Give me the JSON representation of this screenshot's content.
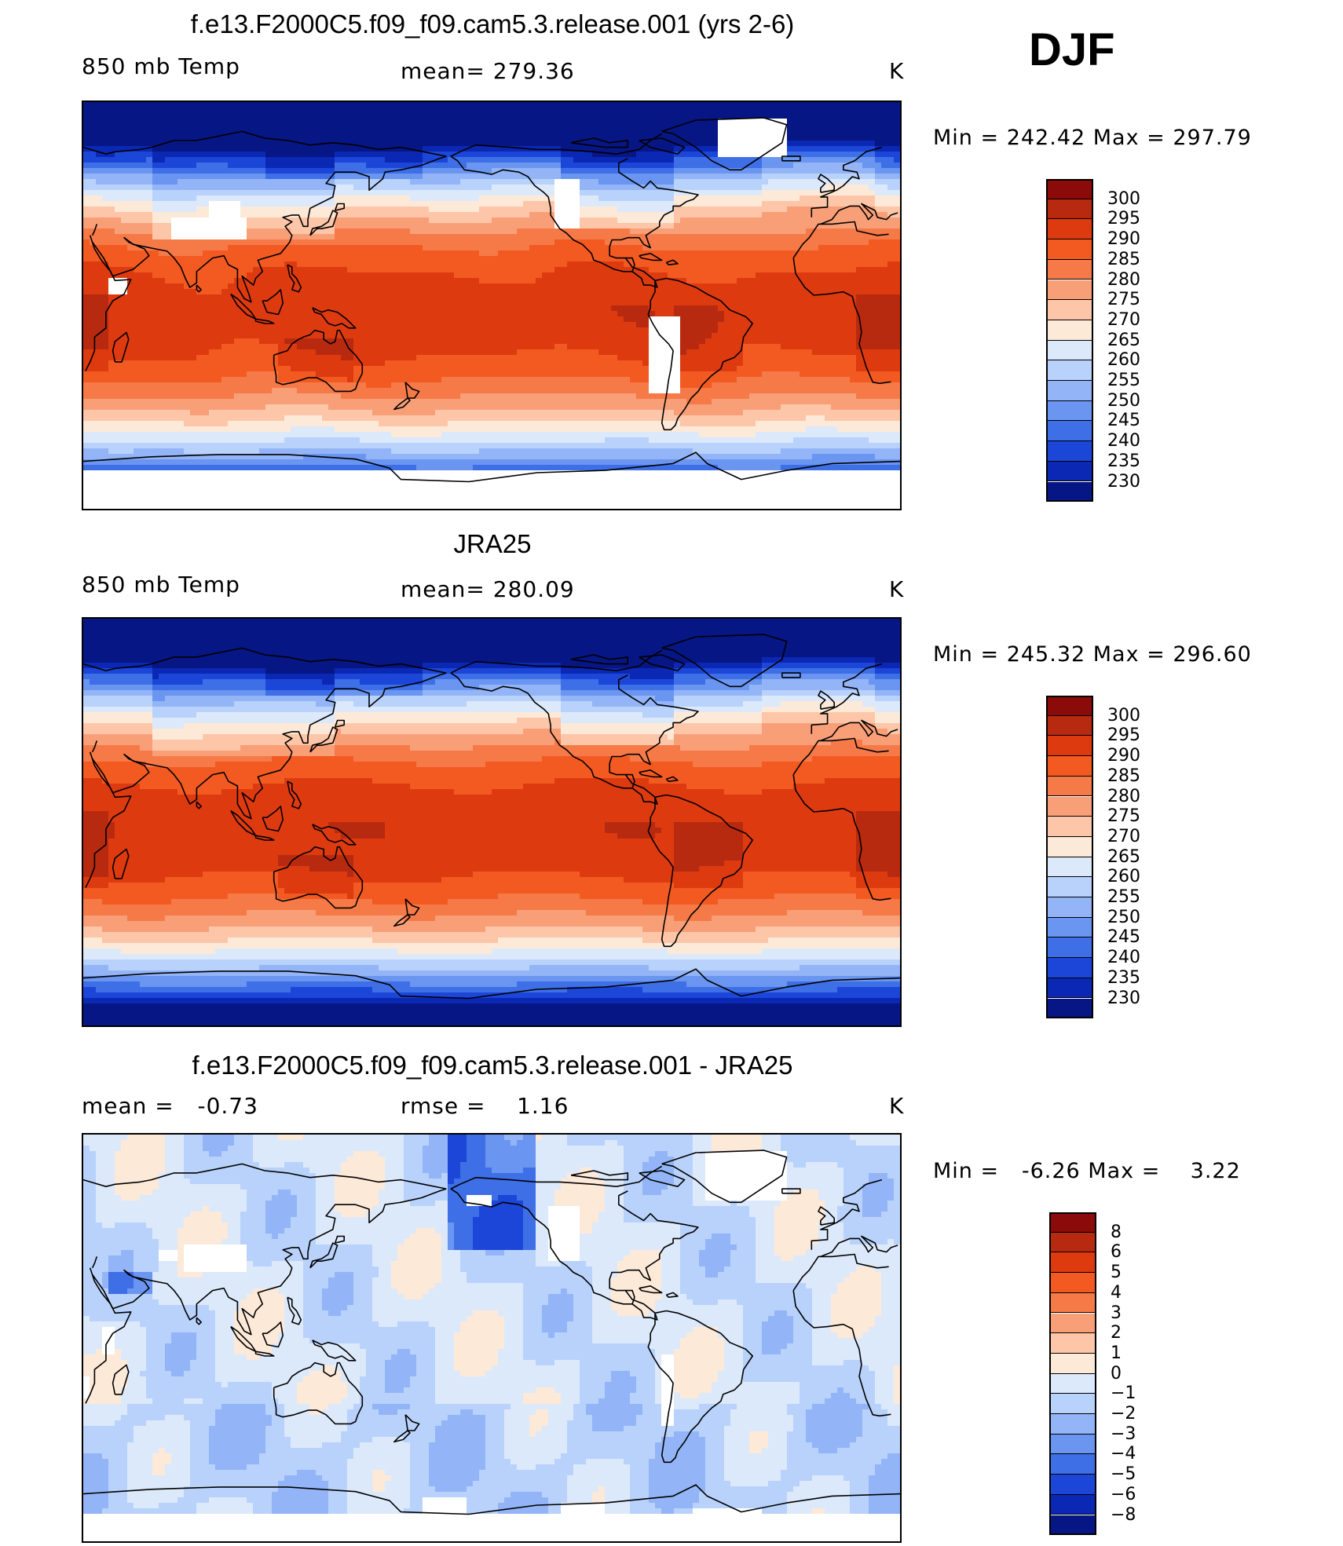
{
  "season": "DJF",
  "panels": [
    {
      "title": "f.e13.F2000C5.f09_f09.cam5.3.release.001 (yrs 2-6)",
      "left_label": "850 mb Temp",
      "center_label": "mean= 279.36",
      "units": "K",
      "min_max": "Min = 242.42 Max = 297.79",
      "colorbar_ticks": [
        "300",
        "295",
        "290",
        "285",
        "280",
        "275",
        "270",
        "265",
        "260",
        "255",
        "250",
        "245",
        "240",
        "235",
        "230"
      ],
      "colors": [
        "#8b0a0a",
        "#b82a0f",
        "#dd3a10",
        "#f25a22",
        "#f57a48",
        "#f99f78",
        "#fdc6a8",
        "#fde9d8",
        "#dce9fb",
        "#b9d2fb",
        "#93b5f7",
        "#6a95f0",
        "#3e6fe6",
        "#1c46d8",
        "#0b28b4",
        "#061685"
      ],
      "field": "model"
    },
    {
      "title": "JRA25",
      "left_label": "850 mb Temp",
      "center_label": "mean= 280.09",
      "units": "K",
      "min_max": "Min = 245.32 Max = 296.60",
      "colorbar_ticks": [
        "300",
        "295",
        "290",
        "285",
        "280",
        "275",
        "270",
        "265",
        "260",
        "255",
        "250",
        "245",
        "240",
        "235",
        "230"
      ],
      "colors": [
        "#8b0a0a",
        "#b82a0f",
        "#dd3a10",
        "#f25a22",
        "#f57a48",
        "#f99f78",
        "#fdc6a8",
        "#fde9d8",
        "#dce9fb",
        "#b9d2fb",
        "#93b5f7",
        "#6a95f0",
        "#3e6fe6",
        "#1c46d8",
        "#0b28b4",
        "#061685"
      ],
      "field": "obs"
    },
    {
      "title": "f.e13.F2000C5.f09_f09.cam5.3.release.001 - JRA25",
      "left_label": "mean =   -0.73",
      "center_label": "rmse =    1.16",
      "units": "K",
      "min_max": "Min =   -6.26 Max =    3.22",
      "colorbar_ticks": [
        "8",
        "6",
        "5",
        "4",
        "3",
        "2",
        "1",
        "0",
        "−1",
        "−2",
        "−3",
        "−4",
        "−5",
        "−6",
        "−8"
      ],
      "colors": [
        "#8b0a0a",
        "#b82a0f",
        "#dd3a10",
        "#f25a22",
        "#f57a48",
        "#f99f78",
        "#fdc6a8",
        "#fde9d8",
        "#dce9fb",
        "#b9d2fb",
        "#93b5f7",
        "#6a95f0",
        "#3e6fe6",
        "#1c46d8",
        "#0b28b4",
        "#061685"
      ],
      "field": "diff"
    }
  ]
}
